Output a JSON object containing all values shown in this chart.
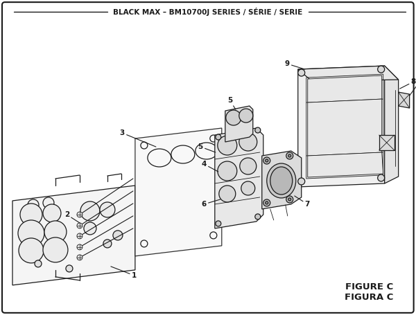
{
  "title": "BLACK MAX – BM10700J SERIES / SÉRIE / SERIE",
  "figure_label": "FIGURE C",
  "figura_label": "FIGURA C",
  "bg_color": "#ffffff",
  "line_color": "#1a1a1a",
  "title_fontsize": 7.5,
  "label_fontsize": 7.5,
  "figure_label_fontsize": 9.5,
  "lw_main": 0.9,
  "lw_thin": 0.6,
  "lw_border": 1.5
}
